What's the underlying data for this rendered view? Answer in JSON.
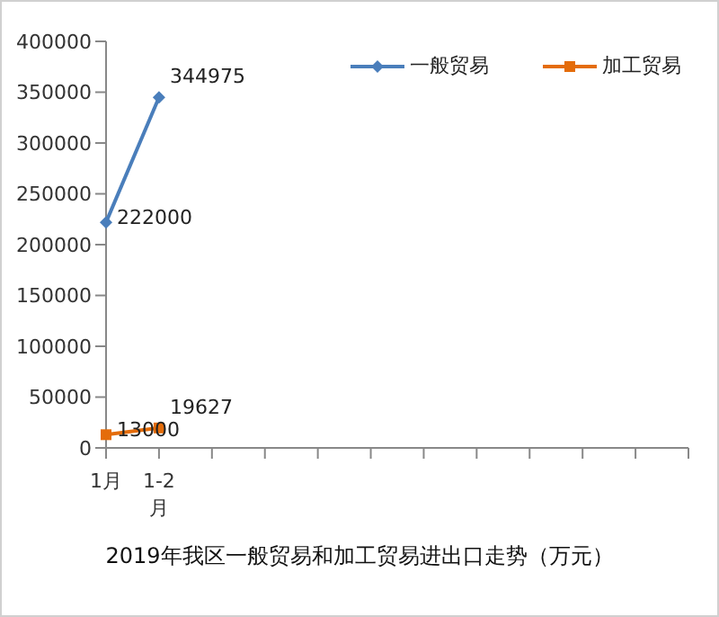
{
  "chart_data": {
    "type": "line",
    "title": "2019年我区一般贸易和加工贸易进出口走势（万元）",
    "categories": [
      "1月",
      "1-2月",
      null,
      null,
      null,
      null,
      null,
      null,
      null,
      null,
      null,
      null
    ],
    "series": [
      {
        "name": "一般贸易",
        "color": "#4a7ebb",
        "marker": "diamond",
        "values": [
          222000,
          344975,
          null,
          null,
          null,
          null,
          null,
          null,
          null,
          null,
          null,
          null
        ]
      },
      {
        "name": "加工贸易",
        "color": "#e46c0a",
        "marker": "square",
        "values": [
          13000,
          19627,
          null,
          null,
          null,
          null,
          null,
          null,
          null,
          null,
          null,
          null
        ]
      }
    ],
    "ylim": [
      0,
      400000
    ],
    "yticks": [
      0,
      50000,
      100000,
      150000,
      200000,
      250000,
      300000,
      350000,
      400000
    ],
    "grid": false,
    "legend": "top right",
    "data_labels": true,
    "line_style": "solid"
  }
}
